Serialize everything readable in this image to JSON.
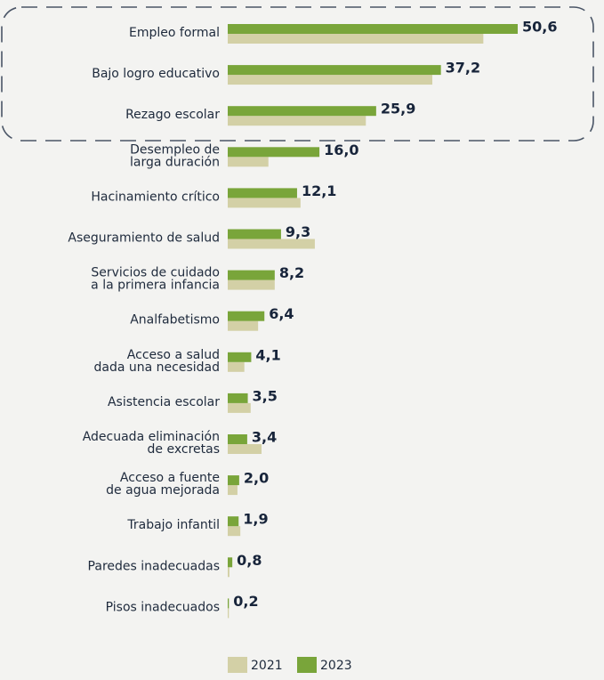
{
  "chart_data": {
    "type": "bar",
    "orientation": "horizontal",
    "categories": [
      "Empleo formal",
      "Bajo logro educativo",
      "Rezago escolar",
      "Desempleo de\nlarga duración",
      "Hacinamiento crítico",
      "Aseguramiento de salud",
      "Servicios de cuidado\na la primera infancia",
      "Analfabetismo",
      "Acceso a salud\ndada una necesidad",
      "Asistencia escolar",
      "Adecuada eliminación\nde excretas",
      "Acceso a fuente\nde agua mejorada",
      "Trabajo infantil",
      "Paredes inadecuadas",
      "Pisos inadecuados"
    ],
    "series": [
      {
        "name": "2021",
        "color": "#d3d0a6",
        "values": [
          44.6,
          35.7,
          24.1,
          7.1,
          12.7,
          15.2,
          8.2,
          5.3,
          2.9,
          4.0,
          5.9,
          1.7,
          2.2,
          0.3,
          0.2
        ]
      },
      {
        "name": "2023",
        "color": "#79a53a",
        "values": [
          50.6,
          37.2,
          25.9,
          16.0,
          12.1,
          9.3,
          8.2,
          6.4,
          4.1,
          3.5,
          3.4,
          2.0,
          1.9,
          0.8,
          0.2
        ],
        "value_labels": [
          "50,6",
          "37,2",
          "25,9",
          "16,0",
          "12,1",
          "9,3",
          "8,2",
          "6,4",
          "4,1",
          "3,5",
          "3,4",
          "2,0",
          "1,9",
          "0,8",
          "0,2"
        ]
      }
    ],
    "legend": "bottom"
  }
}
